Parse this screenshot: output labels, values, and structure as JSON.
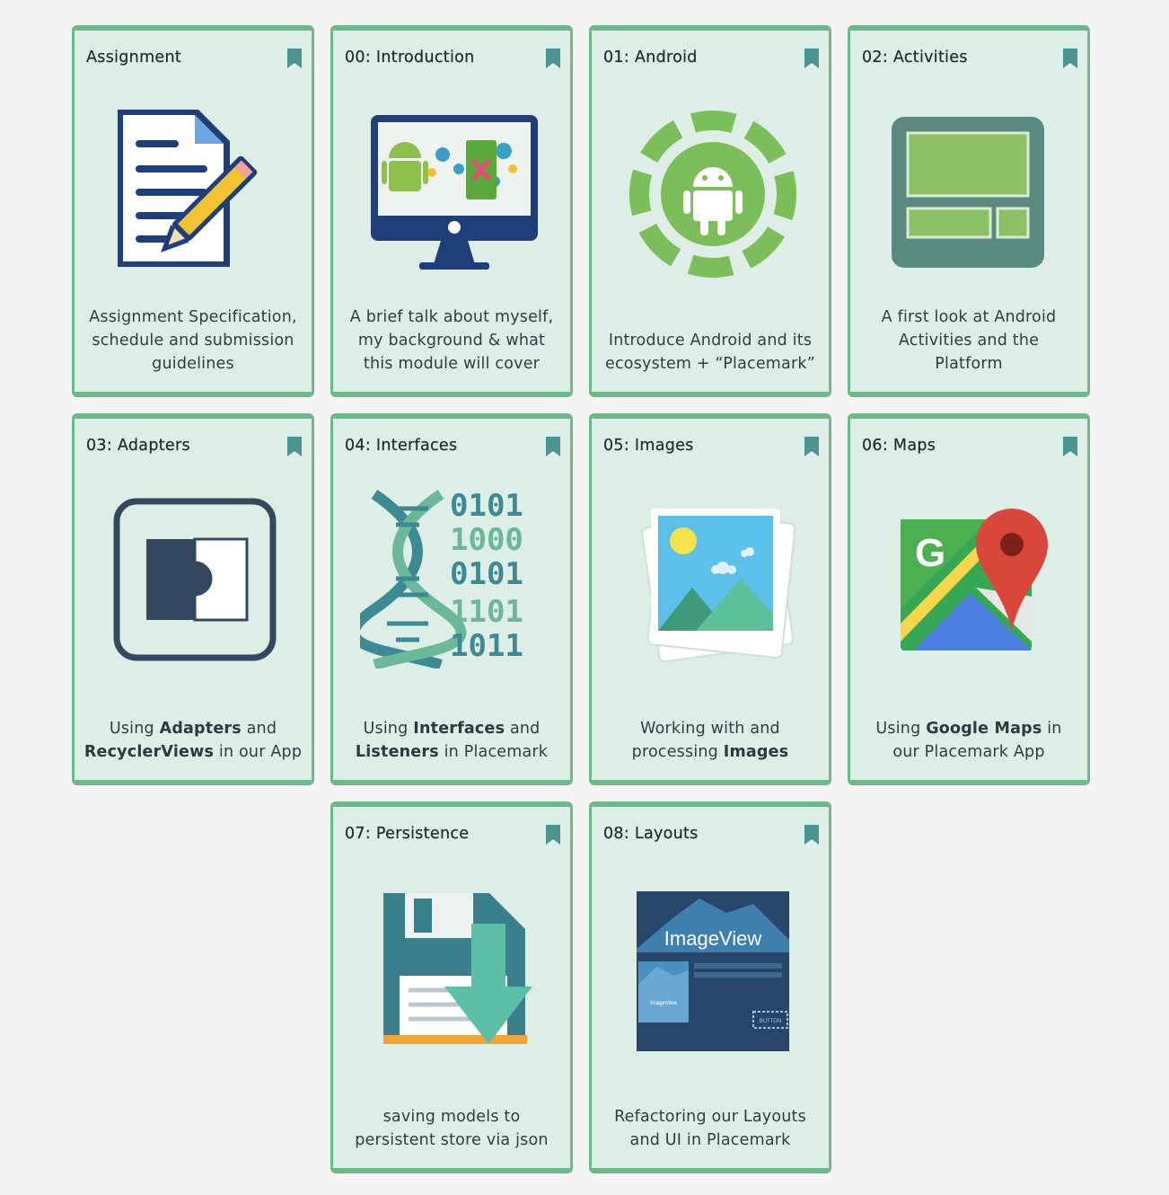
{
  "colors": {
    "background": "#f4f4f4",
    "card": "#ddeee6",
    "border": "#6cb98a",
    "bookmark": "#4a9590"
  },
  "cards": [
    {
      "title": "Assignment",
      "icon": "document-pencil-icon",
      "desc": [
        "Assignment Specification,",
        "schedule and submission",
        "guidelines"
      ]
    },
    {
      "title": "00: Introduction",
      "icon": "monitor-android-icon",
      "desc": [
        "A brief talk about myself,",
        "my background & what",
        "this module will cover"
      ]
    },
    {
      "title": "01: Android",
      "icon": "android-robot-icon",
      "desc": [
        "Introduce Android and its",
        "ecosystem + “Placemark”"
      ]
    },
    {
      "title": "02: Activities",
      "icon": "activity-layout-icon",
      "desc": [
        "A first look at Android",
        "Activities and the",
        "Platform"
      ]
    },
    {
      "title": "03: Adapters",
      "icon": "adapter-puzzle-icon",
      "desc_a": [
        "Using ",
        "Adapters",
        " and"
      ],
      "desc_b": [
        "RecyclerViews",
        " in our App"
      ]
    },
    {
      "title": "04: Interfaces",
      "icon": "dna-binary-icon",
      "desc_a": [
        "Using ",
        "Interfaces",
        " and"
      ],
      "desc_b": [
        "Listeners",
        " in Placemark"
      ]
    },
    {
      "title": "05: Images",
      "icon": "photo-stack-icon",
      "desc_a": [
        "Working with and"
      ],
      "desc_b": [
        "processing ",
        "Images"
      ]
    },
    {
      "title": "06: Maps",
      "icon": "google-maps-icon",
      "desc_a": [
        "Using ",
        "Google Maps",
        " in"
      ],
      "desc_b": [
        "our Placemark App"
      ]
    },
    {
      "title": "07: Persistence",
      "icon": "floppy-disk-download-icon",
      "desc": [
        "saving models to",
        "persistent store via json"
      ]
    },
    {
      "title": "08: Layouts",
      "icon": "imageview-layout-icon",
      "image_text": "ImageView",
      "image_text_small": "ImageView",
      "image_button": "BUTTON",
      "desc": [
        "Refactoring our Layouts",
        "and UI in Placemark"
      ]
    }
  ],
  "glyphs": {
    "maps_letter": "G",
    "binary_rows": [
      "0101",
      "1000",
      "0101",
      "1101",
      "1011"
    ]
  }
}
